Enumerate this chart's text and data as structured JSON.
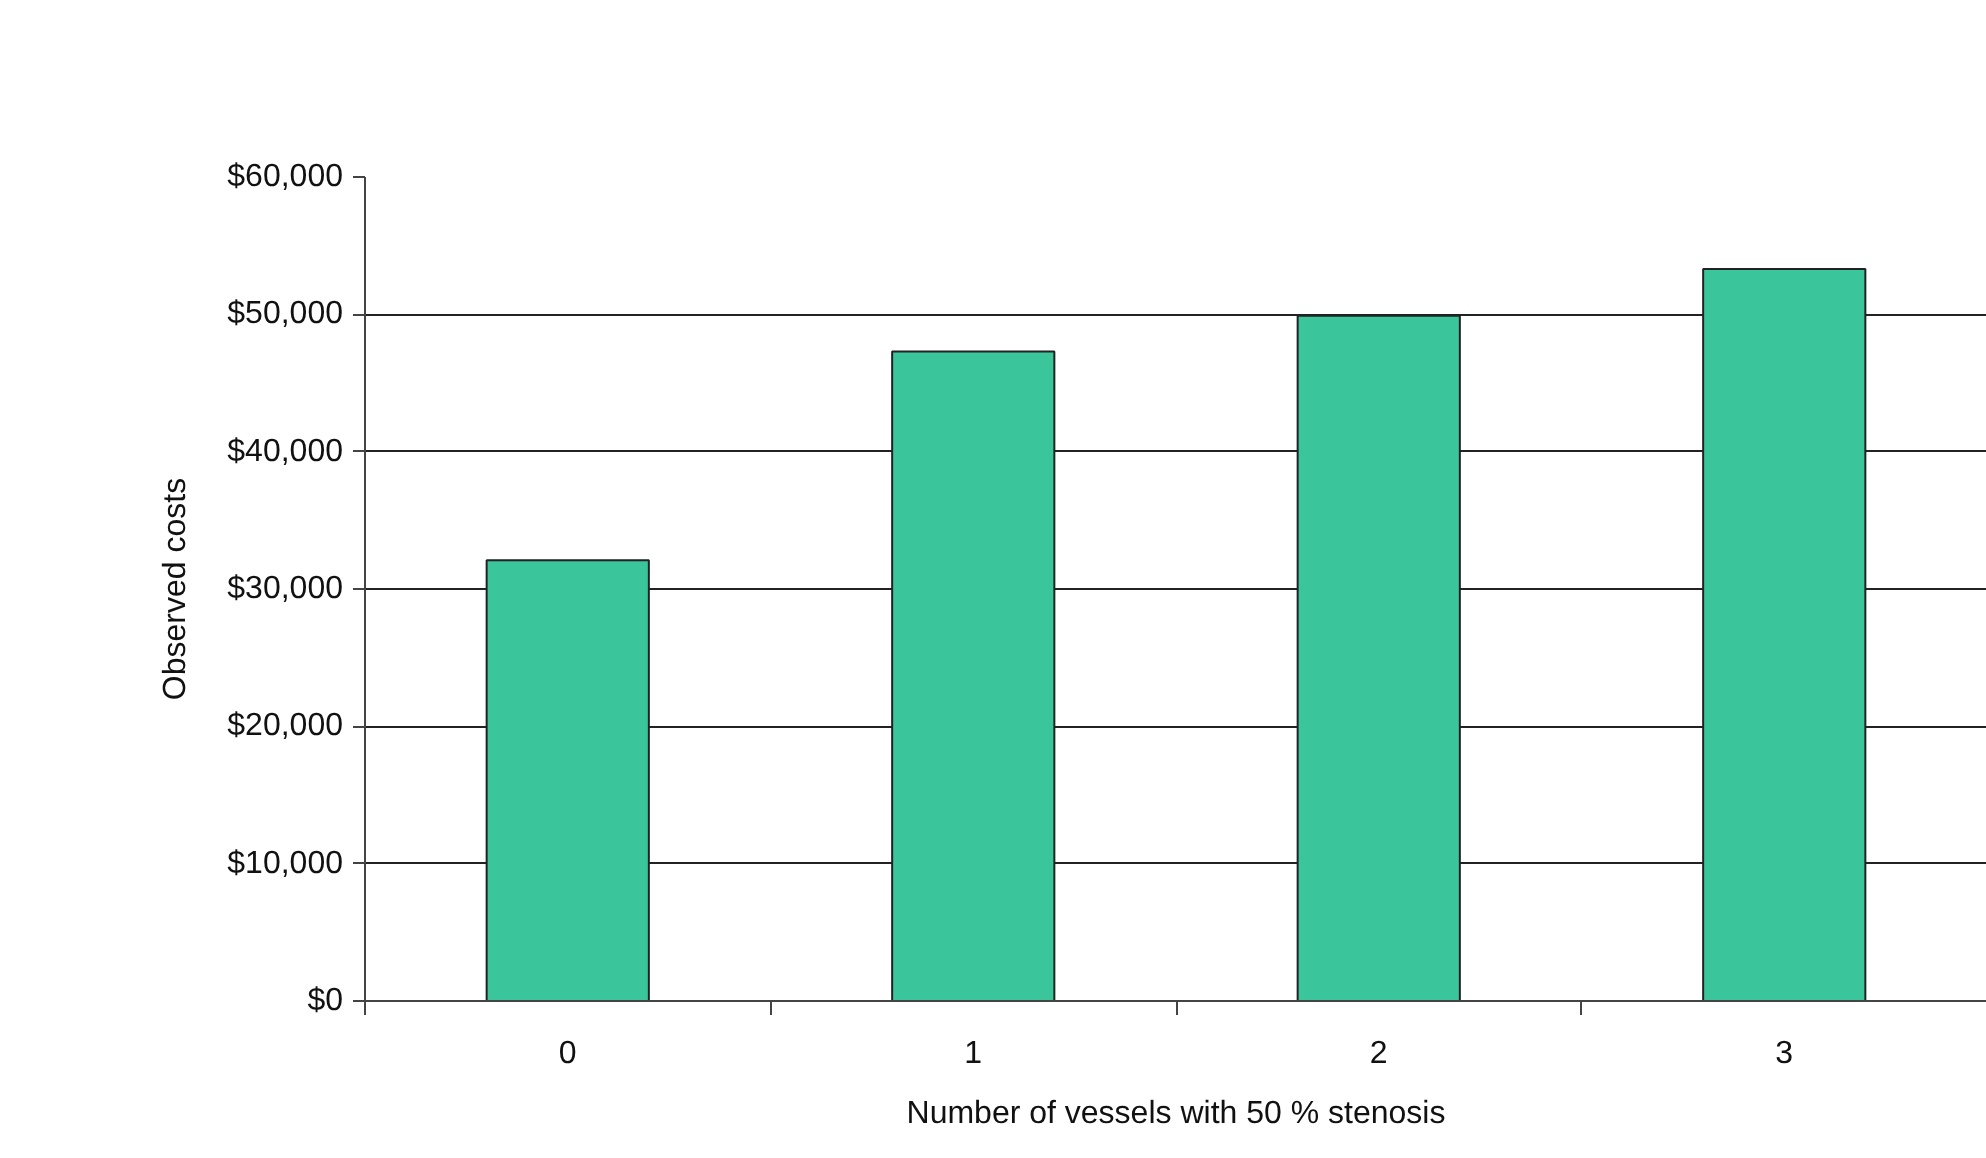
{
  "chart_data": {
    "type": "bar",
    "xlabel": "Number of vessels with 50 % stenosis",
    "ylabel": "Observed costs",
    "categories": [
      "0",
      "1",
      "2",
      "3"
    ],
    "values": [
      32100,
      47300,
      49900,
      53300
    ],
    "color": "#3ac59a",
    "ylim": [
      0,
      60000
    ],
    "yticks": [
      {
        "value": 0,
        "label": "$0"
      },
      {
        "value": 10000,
        "label": "$10,000"
      },
      {
        "value": 20000,
        "label": "$20,000"
      },
      {
        "value": 30000,
        "label": "$30,000"
      },
      {
        "value": 40000,
        "label": "$40,000"
      },
      {
        "value": 50000,
        "label": "$50,000"
      },
      {
        "value": 60000,
        "label": "$60,000"
      }
    ],
    "grid": "y"
  }
}
